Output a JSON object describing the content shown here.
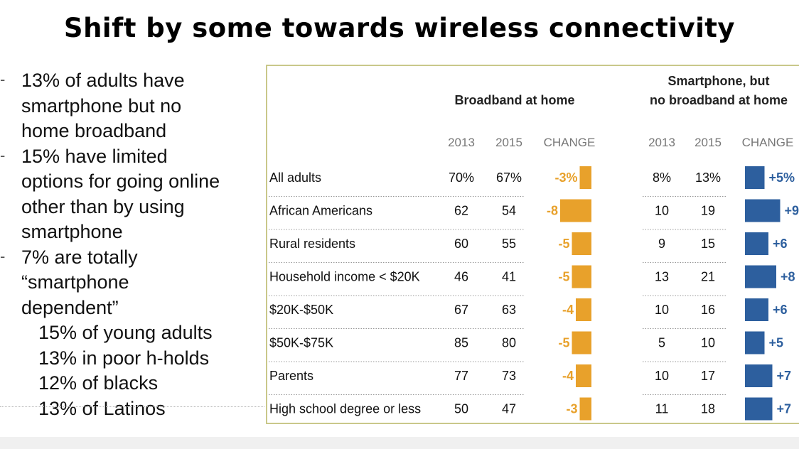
{
  "slide": {
    "title": "Shift by some towards wireless connectivity"
  },
  "bullets": [
    {
      "level": 1,
      "lines": [
        "13% of adults have",
        "smartphone but no",
        "home broadband"
      ]
    },
    {
      "level": 1,
      "lines": [
        "15% have limited",
        "options for going online",
        "other than by using",
        "smartphone"
      ]
    },
    {
      "level": 1,
      "lines": [
        "7% are totally",
        "“smartphone",
        "dependent”"
      ]
    },
    {
      "level": 2,
      "lines": [
        "15% of young adults"
      ]
    },
    {
      "level": 2,
      "lines": [
        "13% in poor h-holds"
      ]
    },
    {
      "level": 2,
      "lines": [
        "12% of blacks"
      ]
    },
    {
      "level": 2,
      "lines": [
        "13% of Latinos"
      ]
    }
  ],
  "chart_data": {
    "type": "table",
    "colors": {
      "broadband": "#e8a12b",
      "smartphone": "#2d5f9e"
    },
    "groups": [
      {
        "title_lines": [
          "Broadband at home"
        ],
        "columns": [
          "2013",
          "2015",
          "CHANGE"
        ]
      },
      {
        "title_lines": [
          "Smartphone, but",
          "no broadband at home"
        ],
        "columns": [
          "2013",
          "2015",
          "CHANGE"
        ]
      }
    ],
    "rows": [
      {
        "label": "All adults",
        "broadband": {
          "y2013": "70%",
          "y2015": "67%",
          "change": -3,
          "change_label": "-3%"
        },
        "smartphone": {
          "y2013": "8%",
          "y2015": "13%",
          "change": 5,
          "change_label": "+5%"
        }
      },
      {
        "label": "African Americans",
        "broadband": {
          "y2013": "62",
          "y2015": "54",
          "change": -8,
          "change_label": "-8"
        },
        "smartphone": {
          "y2013": "10",
          "y2015": "19",
          "change": 9,
          "change_label": "+9"
        }
      },
      {
        "label": "Rural residents",
        "broadband": {
          "y2013": "60",
          "y2015": "55",
          "change": -5,
          "change_label": "-5"
        },
        "smartphone": {
          "y2013": "9",
          "y2015": "15",
          "change": 6,
          "change_label": "+6"
        }
      },
      {
        "label": "Household income < $20K",
        "broadband": {
          "y2013": "46",
          "y2015": "41",
          "change": -5,
          "change_label": "-5"
        },
        "smartphone": {
          "y2013": "13",
          "y2015": "21",
          "change": 8,
          "change_label": "+8"
        }
      },
      {
        "label": "$20K-$50K",
        "broadband": {
          "y2013": "67",
          "y2015": "63",
          "change": -4,
          "change_label": "-4"
        },
        "smartphone": {
          "y2013": "10",
          "y2015": "16",
          "change": 6,
          "change_label": "+6"
        }
      },
      {
        "label": "$50K-$75K",
        "broadband": {
          "y2013": "85",
          "y2015": "80",
          "change": -5,
          "change_label": "-5"
        },
        "smartphone": {
          "y2013": "5",
          "y2015": "10",
          "change": 5,
          "change_label": "+5"
        }
      },
      {
        "label": "Parents",
        "broadband": {
          "y2013": "77",
          "y2015": "73",
          "change": -4,
          "change_label": "-4"
        },
        "smartphone": {
          "y2013": "10",
          "y2015": "17",
          "change": 7,
          "change_label": "+7"
        }
      },
      {
        "label": "High school degree or less",
        "broadband": {
          "y2013": "50",
          "y2015": "47",
          "change": -3,
          "change_label": "-3"
        },
        "smartphone": {
          "y2013": "11",
          "y2015": "18",
          "change": 7,
          "change_label": "+7"
        }
      }
    ]
  }
}
